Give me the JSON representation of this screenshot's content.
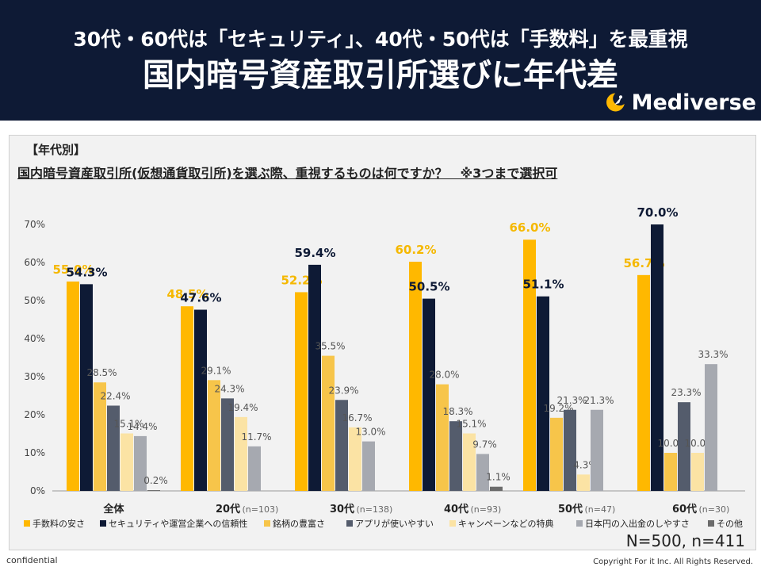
{
  "header": {
    "subtitle": "30代・60代は「セキュリティ」、40代・50代は「手数料」を最重視",
    "title": "国内暗号資産取引所選びに年代差",
    "logo_text": "Mediverse",
    "background": "#0e1a35"
  },
  "section_label": "【年代別】",
  "question": "国内暗号資産取引所(仮想通貨取引所)を選ぶ際、重視するものは何ですか？　※3つまで選択可",
  "sample_note": "N=500, n=411",
  "footer": {
    "confidential": "confidential",
    "copyright": "Copyright For it Inc. All Rights Reserved."
  },
  "chart_data": {
    "type": "bar",
    "categories": [
      "全体",
      "20代",
      "30代",
      "40代",
      "50代",
      "60代"
    ],
    "category_notes": [
      "",
      "(n=103)",
      "(n=138)",
      "(n=93)",
      "(n=47)",
      "(n=30)"
    ],
    "ylim": [
      0,
      70
    ],
    "yticks": [
      "0%",
      "10%",
      "20%",
      "30%",
      "40%",
      "50%",
      "60%",
      "70%"
    ],
    "grid": false,
    "legend_position": "bottom",
    "series": [
      {
        "name": "手数料の安さ",
        "color": "#ffb800",
        "values": [
          55.0,
          48.5,
          52.2,
          60.2,
          66.0,
          56.7
        ],
        "labels": [
          "55.0%",
          "48.5%",
          "52.2%",
          "60.2%",
          "66.0%",
          "56.7%"
        ]
      },
      {
        "name": "セキュリティや運営企業への信頼性",
        "color": "#0e1a35",
        "values": [
          54.3,
          47.6,
          59.4,
          50.5,
          51.1,
          70.0
        ],
        "labels": [
          "54.3%",
          "47.6%",
          "59.4%",
          "50.5%",
          "51.1%",
          "70.0%"
        ]
      },
      {
        "name": "銘柄の豊富さ",
        "color": "#f7c54a",
        "values": [
          28.5,
          29.1,
          35.5,
          28.0,
          19.2,
          10.0
        ],
        "labels": [
          "28.5%",
          "29.1%",
          "35.5%",
          "28.0%",
          "19.2%",
          "10.0%"
        ]
      },
      {
        "name": "アプリが使いやすい",
        "color": "#545c6c",
        "values": [
          22.4,
          24.3,
          23.9,
          18.3,
          21.3,
          23.3
        ],
        "labels": [
          "22.4%",
          "24.3%",
          "23.9%",
          "18.3%",
          "21.3%",
          "23.3%"
        ]
      },
      {
        "name": "キャンペーンなどの特典",
        "color": "#fbe3a4",
        "values": [
          15.1,
          19.4,
          16.7,
          15.1,
          4.3,
          10.0
        ],
        "labels": [
          "15.1%",
          "19.4%",
          "16.7%",
          "15.1%",
          "4.3%",
          "10.0%"
        ]
      },
      {
        "name": "日本円の入出金のしやすさ",
        "color": "#a6a9b0",
        "values": [
          14.4,
          11.7,
          13.0,
          9.7,
          21.3,
          33.3
        ],
        "labels": [
          "14.4%",
          "11.7%",
          "13.0%",
          "9.7%",
          "21.3%",
          "33.3%"
        ]
      },
      {
        "name": "その他",
        "color": "#6b6b6b",
        "values": [
          0.2,
          0,
          0,
          1.1,
          0,
          0
        ],
        "labels": [
          "0.2%",
          "",
          "",
          "1.1%",
          "",
          ""
        ]
      }
    ]
  }
}
